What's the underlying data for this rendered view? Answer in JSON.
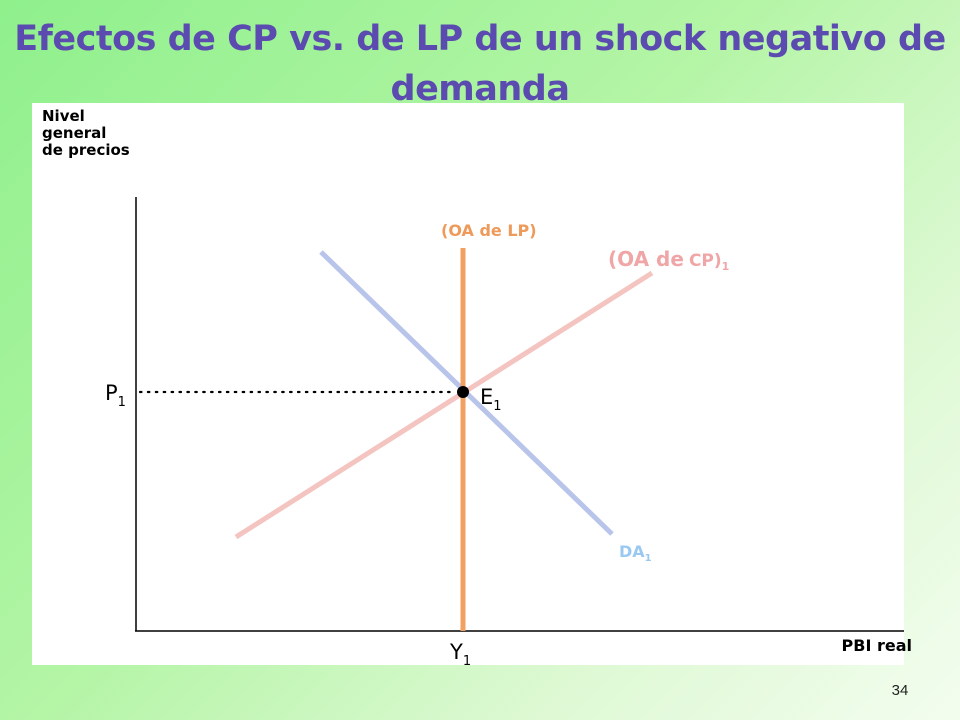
{
  "slide": {
    "title": "Efectos de CP vs. de LP de un shock negativo de demanda",
    "page_number": "34"
  },
  "axes": {
    "y_title": "Nivel general de precios",
    "x_title": "PBI real"
  },
  "diagram": {
    "lras_label": "(OA de LP)",
    "sras_label_main": "(OA de",
    "sras_label_tail": "CP)",
    "sras_subscript": "1",
    "ad_label": "DA",
    "ad_subscript": "1",
    "equilibrium_label": "E",
    "equilibrium_subscript": "1",
    "price_label": "P",
    "price_subscript": "1",
    "output_label": "Y",
    "output_subscript": "1",
    "colors": {
      "lras": "#f0a060",
      "sras": "#f4c4c0",
      "sras_text": "#f0a6a6",
      "ad": "#b8c4ea",
      "ad_text": "#9ac8f0",
      "title": "#5b4bb0",
      "lras_text": "#ee9a5a"
    }
  }
}
